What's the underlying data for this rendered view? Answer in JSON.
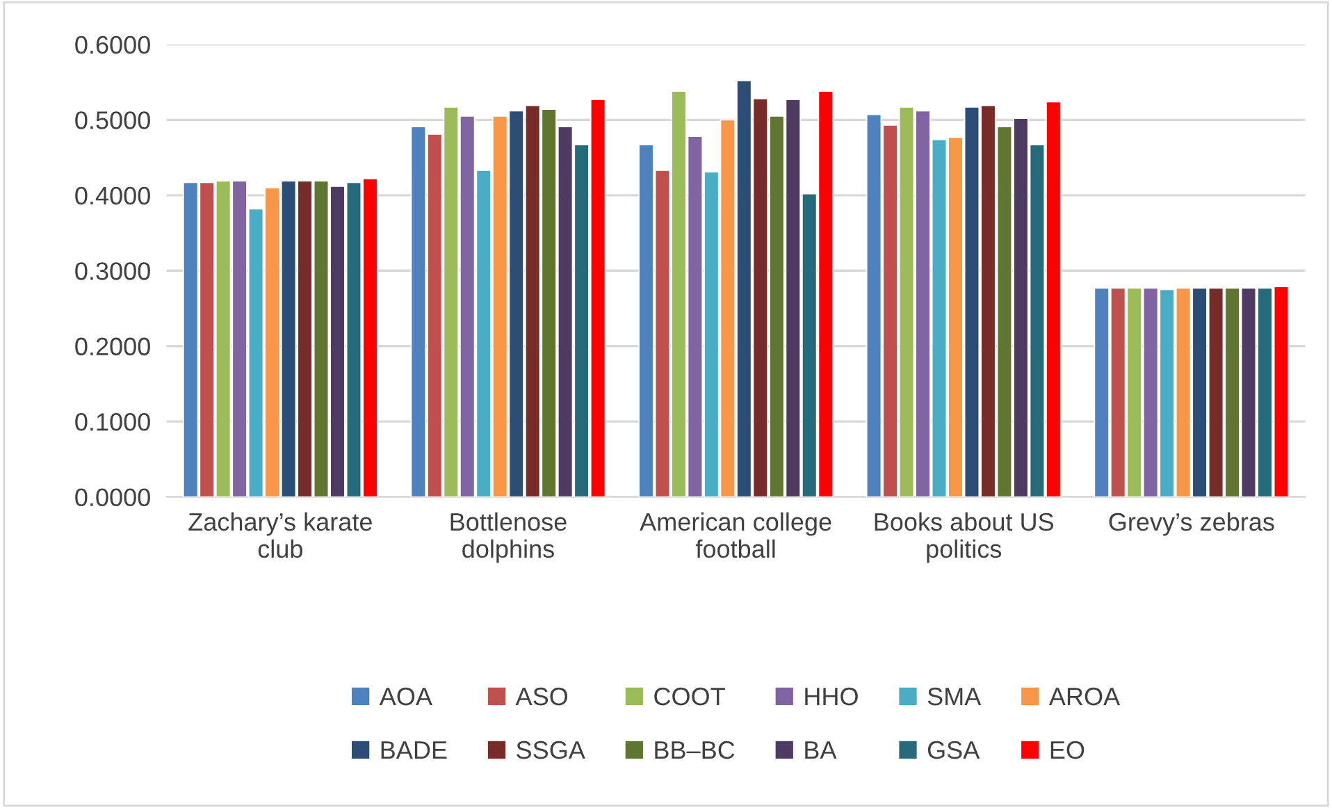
{
  "chart_data": {
    "type": "bar",
    "categories": [
      "Zachary’s karate club",
      "Bottlenose dolphins",
      "American college football",
      "Books about US politics",
      "Grevy’s zebras"
    ],
    "series": [
      {
        "name": "AOA",
        "color": "#4f81bd",
        "values": [
          0.417,
          0.491,
          0.467,
          0.507,
          0.277
        ]
      },
      {
        "name": "ASO",
        "color": "#c0504d",
        "values": [
          0.417,
          0.481,
          0.433,
          0.493,
          0.277
        ]
      },
      {
        "name": "COOT",
        "color": "#9bbb59",
        "values": [
          0.419,
          0.517,
          0.538,
          0.517,
          0.277
        ]
      },
      {
        "name": "HHO",
        "color": "#8064a2",
        "values": [
          0.419,
          0.505,
          0.478,
          0.512,
          0.277
        ]
      },
      {
        "name": "SMA",
        "color": "#4bacc6",
        "values": [
          0.382,
          0.433,
          0.431,
          0.474,
          0.275
        ]
      },
      {
        "name": "AROA",
        "color": "#f79646",
        "values": [
          0.41,
          0.505,
          0.5,
          0.477,
          0.277
        ]
      },
      {
        "name": "BADE",
        "color": "#2c4d75",
        "values": [
          0.419,
          0.512,
          0.552,
          0.517,
          0.277
        ]
      },
      {
        "name": "SSGA",
        "color": "#772c2a",
        "values": [
          0.419,
          0.519,
          0.528,
          0.519,
          0.277
        ]
      },
      {
        "name": "BB–BC",
        "color": "#5f7530",
        "values": [
          0.419,
          0.514,
          0.505,
          0.491,
          0.277
        ]
      },
      {
        "name": "BA",
        "color": "#4d3b62",
        "values": [
          0.412,
          0.491,
          0.527,
          0.502,
          0.277
        ]
      },
      {
        "name": "GSA",
        "color": "#276a7c",
        "values": [
          0.417,
          0.467,
          0.402,
          0.467,
          0.277
        ]
      },
      {
        "name": "EO",
        "color": "#ff0000",
        "values": [
          0.422,
          0.527,
          0.538,
          0.524,
          0.279
        ]
      }
    ],
    "ylim": [
      0,
      0.6
    ],
    "yticks": [
      {
        "value": 0,
        "label": "0.0000"
      },
      {
        "value": 0.1,
        "label": "0.1000"
      },
      {
        "value": 0.2,
        "label": "0.2000"
      },
      {
        "value": 0.3,
        "label": "0.3000"
      },
      {
        "value": 0.4,
        "label": "0.4000"
      },
      {
        "value": 0.5,
        "label": "0.5000"
      },
      {
        "value": 0.6,
        "label": "0.6000"
      }
    ],
    "grid": "y",
    "legend": "bottom"
  }
}
